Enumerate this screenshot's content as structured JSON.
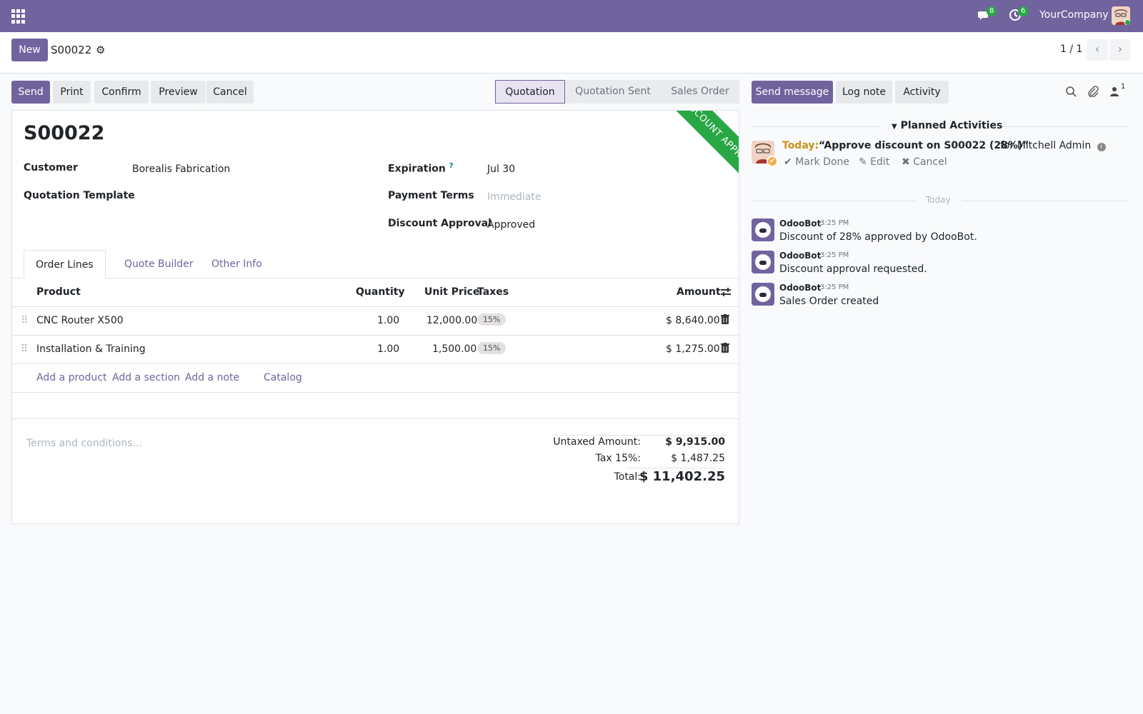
{
  "navbar": {
    "company": "YourCompany",
    "messages_count": "8",
    "activities_count": "6"
  },
  "control": {
    "new_label": "New",
    "record_name": "S00022",
    "pager": "1 / 1"
  },
  "actions": {
    "send": "Send",
    "print": "Print",
    "confirm": "Confirm",
    "preview": "Preview",
    "cancel": "Cancel"
  },
  "statusbar": {
    "stages": [
      "Quotation",
      "Quotation Sent",
      "Sales Order"
    ],
    "active": "Quotation"
  },
  "form": {
    "ribbon": "DISCOUNT APPROVED",
    "title": "S00022",
    "customer_label": "Customer",
    "customer_value": "Borealis Fabrication",
    "template_label": "Quotation Template",
    "expiration_label": "Expiration",
    "expiration_help": "?",
    "expiration_value": "Jul 30",
    "payment_terms_label": "Payment Terms",
    "payment_terms_placeholder": "Immediate",
    "discount_label": "Discount Approval",
    "discount_value": "Approved"
  },
  "tabs": [
    "Order Lines",
    "Quote Builder",
    "Other Info"
  ],
  "order_lines": {
    "headers": {
      "product": "Product",
      "quantity": "Quantity",
      "unit_price": "Unit Price",
      "taxes": "Taxes",
      "amount": "Amount"
    },
    "rows": [
      {
        "product": "CNC Router X500",
        "quantity": "1.00",
        "unit_price": "12,000.00",
        "tax": "15%",
        "amount": "$ 8,640.00"
      },
      {
        "product": "Installation & Training",
        "quantity": "1.00",
        "unit_price": "1,500.00",
        "tax": "15%",
        "amount": "$ 1,275.00"
      }
    ],
    "add_links": [
      "Add a product",
      "Add a section",
      "Add a note",
      "Catalog"
    ]
  },
  "footer": {
    "terms_placeholder": "Terms and conditions...",
    "untaxed_label": "Untaxed Amount:",
    "untaxed_value": "$ 9,915.00",
    "tax_label": "Tax 15%:",
    "tax_value": "$ 1,487.25",
    "total_label": "Total:",
    "total_value": "$ 11,402.25"
  },
  "chatter": {
    "send_message": "Send message",
    "log_note": "Log note",
    "activity": "Activity",
    "followers_count": "1",
    "planned_title": "Planned Activities",
    "activity_item": {
      "when": "Today:",
      "summary": "“Approve discount on S00022 (28%)”",
      "for": "for Mitchell Admin",
      "mark_done": "Mark Done",
      "edit": "Edit",
      "cancel": "Cancel"
    },
    "date_separator": "Today",
    "messages": [
      {
        "author": "OdooBot",
        "time": "3:25 PM",
        "body": "Discount of 28% approved by OdooBot."
      },
      {
        "author": "OdooBot",
        "time": "3:25 PM",
        "body": "Discount approval requested."
      },
      {
        "author": "OdooBot",
        "time": "3:25 PM",
        "body": "Sales Order created"
      }
    ]
  },
  "colors": {
    "brand": "#71639e",
    "success": "#28a745",
    "warning": "#c7901a"
  }
}
